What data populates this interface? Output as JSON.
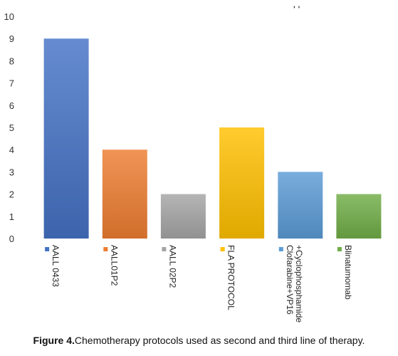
{
  "top_marks": "' '",
  "caption": {
    "label": "Figure 4.",
    "text": "Chemotherapy protocols used as second and third line of therapy."
  },
  "chart_data": {
    "type": "bar",
    "categories": [
      "AALL 0433",
      "AALL01P2",
      "AALL 02P2",
      "FLA PROTOCOL",
      "Clofarabine+VP16 +Cyclophosphamide",
      "Blinatumomab"
    ],
    "category_lines": [
      [
        "AALL 0433"
      ],
      [
        "AALL01P2"
      ],
      [
        "AALL 02P2"
      ],
      [
        "FLA PROTOCOL"
      ],
      [
        "Clofarabine+VP16",
        "+Cyclophosphamide"
      ],
      [
        "Blinatumomab"
      ]
    ],
    "values": [
      9,
      4,
      2,
      5,
      3,
      2
    ],
    "colors": [
      "#4472C4",
      "#ED7D31",
      "#A5A5A5",
      "#FFC000",
      "#5B9BD5",
      "#70AD47"
    ],
    "ylim": [
      0,
      10
    ],
    "yticks": [
      0,
      1,
      2,
      3,
      4,
      5,
      6,
      7,
      8,
      9,
      10
    ],
    "title": "",
    "xlabel": "",
    "ylabel": "",
    "grid": false,
    "legend": "none"
  }
}
